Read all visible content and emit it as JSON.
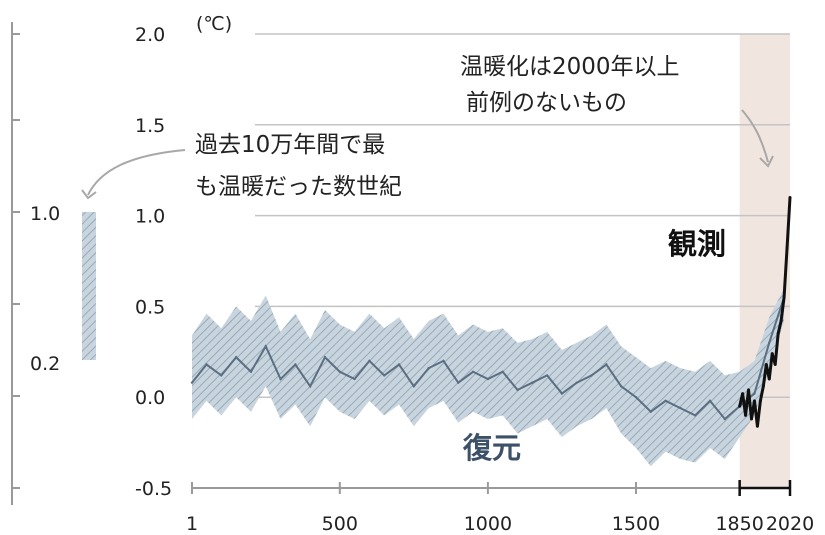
{
  "chart_data": [
    {
      "type": "bar",
      "panel": "left",
      "yticks": [
        "1.0",
        "0.2"
      ],
      "range_bar": {
        "low": 0.2,
        "high": 1.0
      },
      "annotation": [
        "過去10万年間で最",
        "も温暖だった数世紀"
      ]
    },
    {
      "type": "line",
      "unit": "(℃)",
      "ylim": [
        -0.5,
        2.0
      ],
      "yticks": [
        -0.5,
        0.0,
        0.5,
        1.0,
        1.5,
        2.0
      ],
      "ytick_labels": [
        "-0.5",
        "0.0",
        "0.5",
        "1.0",
        "1.5",
        "2.0"
      ],
      "xticks": [
        1,
        500,
        1000,
        1500,
        1850,
        2020
      ],
      "xtick_labels": [
        "1",
        "500",
        "1000",
        "1500",
        "1850",
        "2020"
      ],
      "grid": true,
      "highlight_range": [
        1850,
        2020
      ],
      "annotation_top": [
        "温暖化は2000年以上",
        "前例のないもの"
      ],
      "series": [
        {
          "name": "復元",
          "color": "#5b6e82",
          "band_color": "#b9c8d4",
          "x": [
            1,
            50,
            100,
            150,
            200,
            250,
            300,
            350,
            400,
            450,
            500,
            550,
            600,
            650,
            700,
            750,
            800,
            850,
            900,
            950,
            1000,
            1050,
            1100,
            1150,
            1200,
            1250,
            1300,
            1350,
            1400,
            1450,
            1500,
            1550,
            1600,
            1650,
            1700,
            1750,
            1800,
            1850,
            1900,
            1950,
            2000
          ],
          "y": [
            0.08,
            0.18,
            0.12,
            0.22,
            0.14,
            0.28,
            0.1,
            0.18,
            0.06,
            0.22,
            0.14,
            0.1,
            0.2,
            0.12,
            0.18,
            0.06,
            0.16,
            0.2,
            0.08,
            0.14,
            0.1,
            0.14,
            0.04,
            0.08,
            0.12,
            0.02,
            0.08,
            0.12,
            0.18,
            0.06,
            0.0,
            -0.08,
            -0.02,
            -0.06,
            -0.1,
            -0.02,
            -0.12,
            -0.05,
            0.02,
            0.3,
            0.55
          ],
          "lower": [
            -0.12,
            -0.02,
            -0.1,
            0.0,
            -0.08,
            0.06,
            -0.12,
            -0.04,
            -0.16,
            0.0,
            -0.08,
            -0.12,
            -0.02,
            -0.1,
            -0.04,
            -0.16,
            -0.06,
            -0.02,
            -0.14,
            -0.08,
            -0.12,
            -0.1,
            -0.2,
            -0.16,
            -0.12,
            -0.22,
            -0.16,
            -0.12,
            -0.06,
            -0.2,
            -0.28,
            -0.38,
            -0.3,
            -0.34,
            -0.36,
            -0.28,
            -0.34,
            -0.22,
            -0.1,
            0.15,
            0.42
          ],
          "upper": [
            0.34,
            0.46,
            0.38,
            0.5,
            0.42,
            0.56,
            0.36,
            0.46,
            0.32,
            0.48,
            0.4,
            0.36,
            0.46,
            0.38,
            0.44,
            0.32,
            0.42,
            0.46,
            0.34,
            0.4,
            0.36,
            0.38,
            0.3,
            0.32,
            0.36,
            0.26,
            0.3,
            0.34,
            0.4,
            0.28,
            0.22,
            0.16,
            0.2,
            0.16,
            0.14,
            0.2,
            0.12,
            0.14,
            0.2,
            0.44,
            0.6
          ]
        },
        {
          "name": "観測",
          "color": "#111111",
          "x": [
            1850,
            1860,
            1870,
            1880,
            1890,
            1900,
            1910,
            1920,
            1930,
            1940,
            1950,
            1960,
            1970,
            1980,
            1990,
            2000,
            2010,
            2020
          ],
          "y": [
            -0.05,
            0.02,
            -0.1,
            0.04,
            -0.12,
            -0.02,
            -0.16,
            -0.02,
            0.06,
            0.18,
            0.1,
            0.24,
            0.18,
            0.35,
            0.42,
            0.55,
            0.82,
            1.1
          ]
        }
      ]
    }
  ]
}
